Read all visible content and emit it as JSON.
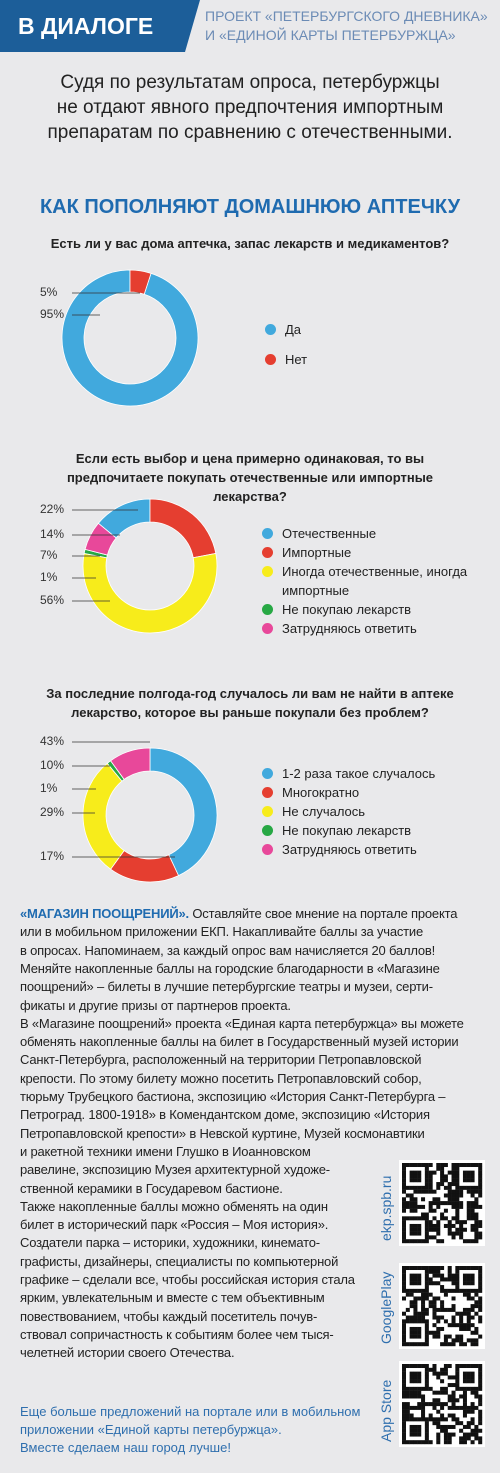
{
  "header": {
    "badge": "В ДИАЛОГЕ",
    "project_lines": [
      "ПРОЕКТ «ПЕТЕРБУРГСКОГО ДНЕВНИКА»",
      "И «ЕДИНОЙ КАРТЫ ПЕТЕРБУРЖЦА»"
    ]
  },
  "intro_lines": [
    "Судя по результатам опроса, петербуржцы",
    "не отдают явного предпочтения импортным",
    "препаратам по сравнению с отечественными."
  ],
  "section_title": "КАК ПОПОЛНЯЮТ ДОМАШНЮЮ АПТЕЧКУ",
  "chart_data": [
    {
      "type": "pie",
      "title": "Есть ли у вас дома аптечка, запас лекарств и медикаментов?",
      "categories": [
        "Да",
        "Нет"
      ],
      "values": [
        95,
        5
      ],
      "value_labels": [
        "95%",
        "5%"
      ],
      "colors": [
        "#41a9dd",
        "#e53e30"
      ]
    },
    {
      "type": "pie",
      "title": "Если есть выбор и цена примерно одинаковая, то вы предпочитаете покупать отечественные или импортные лекарства?",
      "categories": [
        "Отечественные",
        "Импортные",
        "Иногда отечественные, иногда импортные",
        "Не покупаю лекарств",
        "Затрудняюсь ответить"
      ],
      "values": [
        14,
        22,
        56,
        1,
        7
      ],
      "value_labels": [
        "14%",
        "22%",
        "56%",
        "1%",
        "7%"
      ],
      "colors": [
        "#41a9dd",
        "#e53e30",
        "#f7ec1b",
        "#27a844",
        "#e8489a"
      ]
    },
    {
      "type": "pie",
      "title": "За последние полгода-год случалось ли вам не найти в аптеке лекарство, которое вы раньше покупали без проблем?",
      "categories": [
        "1-2 раза такое случалось",
        "Многократно",
        "Не случалось",
        "Не покупаю лекарств",
        "Затрудняюсь ответить"
      ],
      "values": [
        43,
        17,
        29,
        1,
        10
      ],
      "value_labels": [
        "43%",
        "17%",
        "29%",
        "1%",
        "10%"
      ],
      "colors": [
        "#41a9dd",
        "#e53e30",
        "#f7ec1b",
        "#27a844",
        "#e8489a"
      ]
    }
  ],
  "promo": {
    "lead": "«МАГАЗИН ПООЩРЕНИЙ».",
    "lines": [
      "Оставляйте свое мнение на портале проекта",
      "или в мобильном приложении ЕКП. Накапливайте баллы за участие",
      "в опросах. Напоминаем, за каждый опрос вам начисляется 20 баллов!",
      "Меняйте накопленные баллы на городские благодарности в «Магазине",
      "поощрений» – билеты в лучшие петербургские театры и музеи, серти-",
      "фикаты и другие призы от партнеров проекта.",
      "В «Магазине поощрений» проекта «Единая карта петербуржца» вы можете",
      "обменять накопленные баллы на билет в Государственный музей истории",
      "Санкт-Петербурга, расположенный на территории Петропавловской",
      "крепости. По этому билету можно посетить Петропавловский собор,",
      "тюрьму Трубецкого бастиона, экспозицию «История Санкт-Петербурга –",
      "Петроград. 1800-1918» в Комендантском доме, экспозицию «История",
      "Петропавловской крепости» в Невской куртине, Музей космонавтики",
      "и ракетной техники имени Глушко в Иоанновском",
      "равелине, экспозицию Музея архитектурной художе-",
      "ственной керамики в Государевом бастионе.",
      "Также накопленные баллы можно обменять на один",
      "билет в исторический парк «Россия – Моя история».",
      "Создатели парка – историки, художники, кинемато-",
      "графисты, дизайнеры, специалисты по компьютерной",
      "графике – сделали все, чтобы российская история стала",
      "ярким, увлекательным и вместе с тем объективным",
      "повествованием, чтобы каждый посетитель почув-",
      "ствовал сопричастность к событиям более чем тыся-",
      "челетней истории своего Отечества."
    ]
  },
  "qr_labels": [
    "ekp.spb.ru",
    "GooglePlay",
    "App Store"
  ],
  "footer_lines": [
    "Еще больше предложений на портале или в мобильном",
    "приложении «Единой карты петербуржца».",
    "Вместе сделаем наш город лучше!"
  ]
}
